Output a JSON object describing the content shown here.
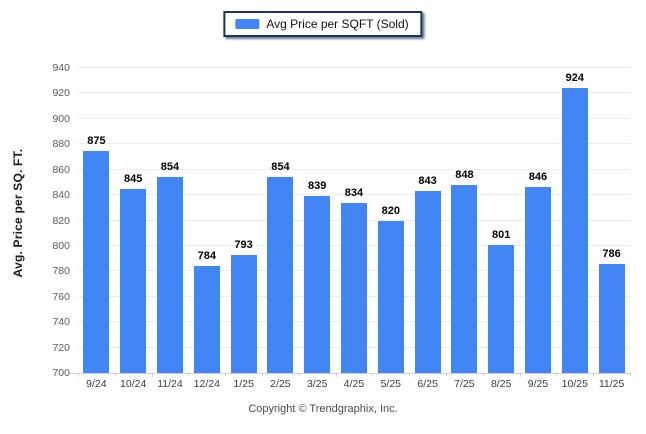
{
  "legend": {
    "label": "Avg Price per SQFT (Sold)",
    "swatch_color": "#4285f4",
    "border_color": "#17365d"
  },
  "footer_text": "Copyright © Trendgraphix, Inc.",
  "chart_data": {
    "type": "bar",
    "title": "",
    "series_name": "Avg Price per SQFT (Sold)",
    "categories": [
      "9/24",
      "10/24",
      "11/24",
      "12/24",
      "1/25",
      "2/25",
      "3/25",
      "4/25",
      "5/25",
      "6/25",
      "7/25",
      "8/25",
      "9/25",
      "10/25",
      "11/25"
    ],
    "values": [
      875,
      845,
      854,
      784,
      793,
      854,
      839,
      834,
      820,
      843,
      848,
      801,
      846,
      924,
      786
    ],
    "xlabel": "",
    "ylabel": "Avg. Price per SQ. FT.",
    "ylim": [
      700,
      940
    ],
    "ytick_step": 20,
    "ytick_labels": [
      "700",
      "720",
      "740",
      "760",
      "780",
      "800",
      "820",
      "840",
      "860",
      "880",
      "900",
      "920",
      "940"
    ],
    "bar_color": "#4285f4",
    "grid": "horizontal",
    "legend_position": "top-center",
    "value_labels_shown": true
  }
}
